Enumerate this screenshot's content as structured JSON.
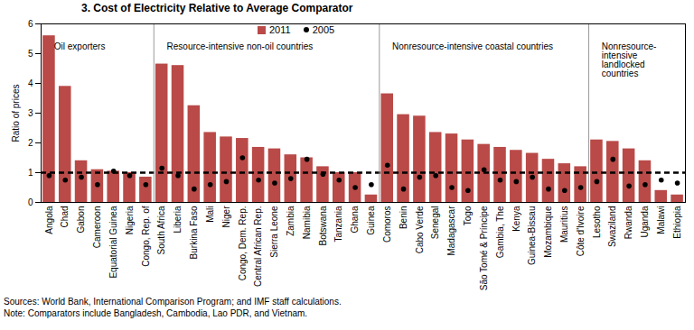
{
  "chart_data": {
    "type": "bar",
    "title": "3. Cost of Electricity Relative to Average Comparator",
    "ylabel": "Ratio of prices",
    "categories": [
      "Angola",
      "Chad",
      "Gabon",
      "Cameroon",
      "Equatorial Guinea",
      "Nigeria",
      "Congo, Rep. of",
      "South Africa",
      "Liberia",
      "Burkina Faso",
      "Mali",
      "Niger",
      "Congo, Dem. Rep.",
      "Central African Rep.",
      "Sierra Leone",
      "Zambia",
      "Namibia",
      "Botswana",
      "Tanzania",
      "Ghana",
      "Guinea",
      "Comoros",
      "Benin",
      "Cabo Verde",
      "Senegal",
      "Madagascar",
      "Togo",
      "São Tomé & Príncipe",
      "Gambia, The",
      "Kenya",
      "Guinea-Bissau",
      "Mozambique",
      "Mauritius",
      "Côte d'Ivoire",
      "Lesotho",
      "Swaziland",
      "Rwanda",
      "Uganda",
      "Malawi",
      "Ethiopia"
    ],
    "series": [
      {
        "name": "2011",
        "type": "bar",
        "color": "#B94A48",
        "values": [
          5.6,
          3.9,
          1.4,
          1.1,
          1.05,
          1.0,
          0.85,
          4.65,
          4.6,
          3.25,
          2.35,
          2.2,
          2.15,
          1.85,
          1.8,
          1.6,
          1.5,
          1.2,
          1.0,
          1.0,
          0.25,
          3.65,
          2.95,
          2.9,
          2.35,
          2.3,
          2.1,
          1.95,
          1.85,
          1.75,
          1.65,
          1.45,
          1.3,
          1.2,
          2.1,
          2.05,
          1.8,
          1.4,
          0.4,
          0.25
        ]
      },
      {
        "name": "2005",
        "type": "scatter",
        "color": "#000000",
        "marker": "circle",
        "values": [
          0.9,
          0.75,
          0.85,
          0.6,
          1.05,
          0.9,
          0.6,
          1.15,
          0.9,
          0.45,
          0.6,
          0.7,
          1.5,
          0.75,
          0.65,
          0.8,
          1.45,
          0.95,
          0.75,
          0.5,
          0.6,
          1.25,
          0.45,
          0.85,
          0.9,
          0.5,
          0.4,
          1.1,
          0.75,
          0.7,
          0.85,
          0.45,
          0.4,
          0.5,
          0.7,
          1.45,
          0.55,
          0.6,
          0.75,
          0.65
        ]
      }
    ],
    "groups": [
      {
        "label": "Oil exporters",
        "from": "Angola",
        "to": "Congo, Rep. of"
      },
      {
        "label": "Resource-intensive non-oil countries",
        "from": "South Africa",
        "to": "Guinea"
      },
      {
        "label": "Nonresource-intensive coastal countries",
        "from": "Comoros",
        "to": "Côte d'Ivoire"
      },
      {
        "label": "Nonresource-intensive landlocked countries",
        "from": "Lesotho",
        "to": "Ethiopia"
      }
    ],
    "annotations": [
      {
        "type": "hline",
        "y": 1,
        "line_style": "dashed",
        "color": "#000000"
      }
    ],
    "ylim": [
      0,
      6
    ],
    "yticks": [
      0,
      1,
      2,
      3,
      4,
      5,
      6
    ],
    "legend": "top",
    "source": "Sources: World Bank, International Comparison Program; and IMF staff calculations.",
    "note": "Note: Comparators include Bangladesh, Cambodia, Lao PDR, and Vietnam."
  }
}
